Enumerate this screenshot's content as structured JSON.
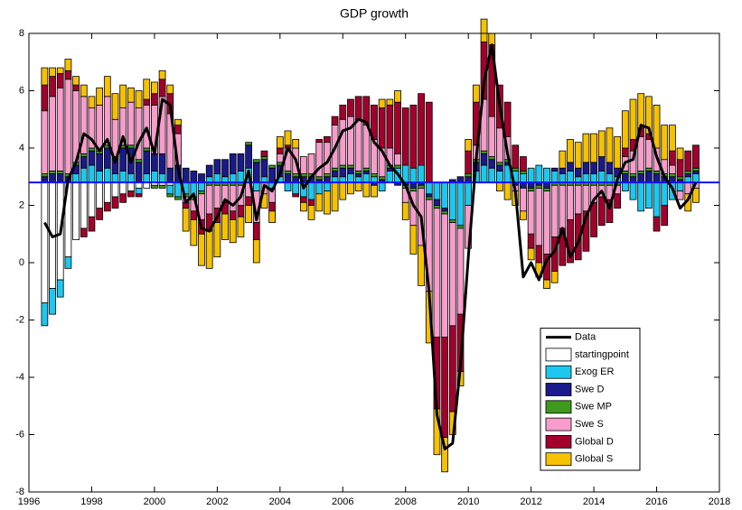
{
  "chart_data": {
    "type": "bar",
    "title": "GDP growth",
    "xlim": [
      1996,
      2018
    ],
    "xticks": [
      1996,
      1998,
      2000,
      2002,
      2004,
      2006,
      2008,
      2010,
      2012,
      2014,
      2016,
      2018
    ],
    "ylim": [
      -8,
      8
    ],
    "yticks": [
      -8,
      -6,
      -4,
      -2,
      0,
      2,
      4,
      6,
      8
    ],
    "baseline": 2.8,
    "baseline_color": "#1010ff",
    "legend": "lower right",
    "x": [
      1996.5,
      1996.75,
      1997,
      1997.25,
      1997.5,
      1997.75,
      1998,
      1998.25,
      1998.5,
      1998.75,
      1999,
      1999.25,
      1999.5,
      1999.75,
      2000,
      2000.25,
      2000.5,
      2000.75,
      2001,
      2001.25,
      2001.5,
      2001.75,
      2002,
      2002.25,
      2002.5,
      2002.75,
      2003,
      2003.25,
      2003.5,
      2003.75,
      2004,
      2004.25,
      2004.5,
      2004.75,
      2005,
      2005.25,
      2005.5,
      2005.75,
      2006,
      2006.25,
      2006.5,
      2006.75,
      2007,
      2007.25,
      2007.5,
      2007.75,
      2008,
      2008.25,
      2008.5,
      2008.75,
      2009,
      2009.25,
      2009.5,
      2009.75,
      2010,
      2010.25,
      2010.5,
      2010.75,
      2011,
      2011.25,
      2011.5,
      2011.75,
      2012,
      2012.25,
      2012.5,
      2012.75,
      2013,
      2013.25,
      2013.5,
      2013.75,
      2014,
      2014.25,
      2014.5,
      2014.75,
      2015,
      2015.25,
      2015.5,
      2015.75,
      2016,
      2016.25,
      2016.5,
      2016.75,
      2017,
      2017.25
    ],
    "data": {
      "name": "Data",
      "color": "#000000",
      "values": [
        1.4,
        0.9,
        1.0,
        2.9,
        3.5,
        4.5,
        4.3,
        3.9,
        4.3,
        3.5,
        4.4,
        3.5,
        4.2,
        4.7,
        3.8,
        5.7,
        5.5,
        3.3,
        2.1,
        2.4,
        1.2,
        1.1,
        1.6,
        2.2,
        2.0,
        2.3,
        3.2,
        1.5,
        2.7,
        2.5,
        3.1,
        4.0,
        3.6,
        2.6,
        3.0,
        3.3,
        3.5,
        4.0,
        4.6,
        4.7,
        5.0,
        4.9,
        4.2,
        3.9,
        3.4,
        3.1,
        2.7,
        2.0,
        1.6,
        -1.0,
        -5.3,
        -6.5,
        -6.3,
        -3.6,
        0.2,
        3.6,
        6.3,
        7.6,
        5.5,
        3.8,
        2.5,
        -0.5,
        0.0,
        -0.6,
        0.1,
        0.4,
        1.2,
        0.2,
        0.7,
        1.6,
        2.2,
        2.5,
        1.9,
        2.9,
        3.5,
        3.6,
        4.8,
        4.7,
        3.7,
        3.0,
        2.6,
        1.9,
        2.2,
        2.8
      ]
    },
    "series": [
      {
        "name": "startingpoint",
        "color": "#ffffff",
        "values": [
          -4.2,
          -3.7,
          -3.4,
          -2.6,
          -2.0,
          -1.6,
          -1.2,
          -0.9,
          -0.7,
          -0.5,
          -0.4,
          -0.3,
          -0.2,
          -0.2,
          -0.1,
          -0.1,
          -0.1,
          0,
          0,
          0,
          0,
          0,
          0,
          0,
          0,
          0,
          0,
          0,
          0,
          0,
          0,
          0,
          0,
          0,
          0,
          0,
          0,
          0,
          0,
          0,
          0,
          0,
          0,
          0,
          0,
          0,
          0,
          0,
          0,
          0,
          0,
          0,
          0,
          0,
          0,
          0,
          0,
          0,
          0,
          0,
          0,
          0,
          0,
          0,
          0,
          0,
          0,
          0,
          0,
          0,
          0,
          0,
          0,
          0,
          0,
          0,
          0,
          0,
          0,
          0,
          0,
          0,
          0,
          0
        ]
      },
      {
        "name": "Exog ER",
        "color": "#1cc8f0",
        "values": [
          -0.8,
          -0.9,
          -0.6,
          -0.4,
          0.3,
          0.5,
          0.6,
          0.4,
          0.5,
          0.3,
          0.4,
          0.3,
          -0.2,
          0.3,
          0.4,
          0.3,
          -0.3,
          -0.5,
          -0.4,
          -0.5,
          -0.3,
          0.2,
          0.3,
          0.2,
          0.3,
          0.4,
          0.5,
          -0.3,
          0.2,
          -0.2,
          0.2,
          -0.3,
          -0.4,
          -0.5,
          -0.6,
          -0.4,
          -0.3,
          0.2,
          0.2,
          0.3,
          0.2,
          0.3,
          0.2,
          -0.3,
          0.4,
          0.5,
          0.6,
          0.5,
          0.6,
          -0.4,
          -0.6,
          -0.9,
          -1.3,
          -1.5,
          -0.8,
          0.4,
          0.6,
          0.5,
          0.4,
          0.6,
          0.4,
          0.3,
          0.5,
          0.6,
          0.5,
          0.4,
          0.3,
          0.4,
          0.2,
          0.3,
          0.3,
          0.4,
          0.3,
          0.2,
          -0.3,
          -0.6,
          -1.0,
          -0.9,
          -1.2,
          -0.8,
          -0.6,
          -0.3,
          0.2,
          0.3
        ]
      },
      {
        "name": "Swe D",
        "color": "#1a1a8c",
        "values": [
          0.2,
          0.3,
          0.3,
          0.2,
          0.3,
          0.4,
          0.5,
          0.6,
          0.7,
          0.5,
          0.8,
          0.9,
          0.7,
          0.8,
          0.6,
          0.7,
          0.5,
          0.6,
          0.5,
          0.4,
          0.3,
          0.4,
          0.5,
          0.6,
          0.7,
          0.6,
          0.8,
          0.7,
          0.6,
          0.5,
          0.4,
          0.3,
          0.2,
          0.2,
          0.2,
          0.1,
          0.2,
          0.2,
          0.3,
          0.2,
          0.1,
          0.1,
          -0.1,
          0.1,
          0.1,
          -0.1,
          -0.1,
          -0.2,
          -0.1,
          -0.1,
          -0.2,
          -0.1,
          0.1,
          0.2,
          0.2,
          0.3,
          0.4,
          0.3,
          0.2,
          0.1,
          -0.1,
          -0.2,
          -0.2,
          -0.1,
          -0.2,
          0.1,
          0.2,
          0.3,
          0.3,
          0.4,
          0.4,
          0.5,
          0.4,
          0.3,
          0.3,
          0.2,
          0.3,
          0.4,
          0.3,
          0.2,
          0.2,
          0.1,
          0.1,
          0.1
        ]
      },
      {
        "name": "Swe MP",
        "color": "#3d9a1c",
        "values": [
          0.1,
          0.1,
          0.1,
          0.1,
          0.1,
          0.1,
          0.1,
          0.1,
          0.1,
          0.1,
          0.1,
          0.1,
          0.1,
          0.1,
          -0.1,
          -0.1,
          -0.1,
          -0.1,
          -0.1,
          -0.1,
          -0.1,
          -0.1,
          -0.1,
          -0.1,
          -0.1,
          -0.1,
          0.1,
          0.1,
          0.1,
          0.1,
          0.1,
          0.1,
          0.1,
          0.1,
          0.1,
          0.1,
          0.1,
          0.1,
          0.1,
          0.1,
          0.1,
          0.1,
          0.1,
          0.1,
          0.1,
          0.1,
          -0.1,
          -0.1,
          -0.1,
          -0.1,
          -0.1,
          -0.1,
          -0.1,
          -0.1,
          0.1,
          0.1,
          0.1,
          0.1,
          0.1,
          0.1,
          0.1,
          0.1,
          -0.1,
          -0.1,
          -0.1,
          -0.1,
          -0.1,
          -0.1,
          -0.1,
          -0.1,
          -0.1,
          -0.1,
          -0.1,
          -0.1,
          0.1,
          0.1,
          0.1,
          0.1,
          0.1,
          0.1,
          0.1,
          0.1,
          0.1,
          0.1
        ]
      },
      {
        "name": "Swe S",
        "color": "#f79ccb",
        "values": [
          2.2,
          2.6,
          2.9,
          3.3,
          2.5,
          2.0,
          1.4,
          1.6,
          1.7,
          1.3,
          1.3,
          1.5,
          1.8,
          1.5,
          1.7,
          2.0,
          1.9,
          1.1,
          -0.2,
          -0.4,
          -0.9,
          -1.0,
          -0.8,
          -0.6,
          -0.9,
          -0.7,
          -0.5,
          -1.1,
          -0.4,
          -0.5,
          0.3,
          0.8,
          0.9,
          0.6,
          0.7,
          1.2,
          1.1,
          1.5,
          1.6,
          1.7,
          1.8,
          1.5,
          1.2,
          1.0,
          0.6,
          0.4,
          -0.5,
          -1.2,
          -2.0,
          -3.2,
          -4.5,
          -4.3,
          -3.6,
          -3.0,
          -1.5,
          0.5,
          1.8,
          1.4,
          1.2,
          0.8,
          -0.2,
          -0.8,
          -1.5,
          -2.0,
          -2.2,
          -1.8,
          -1.5,
          -1.2,
          -1.0,
          -0.9,
          -0.6,
          -0.4,
          -0.5,
          -0.3,
          0.5,
          0.8,
          1.2,
          1.0,
          0.8,
          0.5,
          0.3,
          -0.3,
          -0.4,
          -0.2
        ]
      },
      {
        "name": "Global D",
        "color": "#a3002c",
        "values": [
          0.9,
          0.7,
          0.5,
          0.3,
          0.2,
          -0.3,
          -0.5,
          -0.4,
          -0.3,
          -0.4,
          -0.3,
          -0.2,
          -0.1,
          0.2,
          0.4,
          0.6,
          0.7,
          0.3,
          -0.2,
          -0.3,
          -0.5,
          -0.6,
          -0.5,
          -0.4,
          -0.3,
          -0.4,
          -0.3,
          -0.6,
          0.2,
          -0.3,
          0.2,
          0.1,
          -0.1,
          -0.2,
          -0.2,
          0.1,
          0.2,
          0.3,
          0.5,
          0.6,
          0.8,
          1.0,
          1.2,
          1.4,
          1.5,
          1.8,
          2.0,
          2.2,
          2.5,
          2.8,
          -2.5,
          -3.5,
          -3.0,
          -2.0,
          0.8,
          1.5,
          2.0,
          2.5,
          1.5,
          1.2,
          0.8,
          0.5,
          -0.5,
          -0.6,
          -0.9,
          -1.2,
          -1.3,
          -1.5,
          -1.6,
          -1.4,
          -1.2,
          -1.0,
          -0.8,
          -0.5,
          0.3,
          0.4,
          0.3,
          0.2,
          -0.5,
          -0.7,
          0.5,
          0.6,
          0.7,
          0.8
        ]
      },
      {
        "name": "Global S",
        "color": "#f6c100",
        "values": [
          0.6,
          0.3,
          0.2,
          0.4,
          0.3,
          0.4,
          0.4,
          0.6,
          0.7,
          0.9,
          0.8,
          0.5,
          0.6,
          0.7,
          0.4,
          0.3,
          0.3,
          0.2,
          -0.8,
          -0.9,
          -1.1,
          -1.3,
          -1.2,
          -0.9,
          -0.8,
          -0.7,
          -0.6,
          -0.8,
          -0.5,
          -0.4,
          0.4,
          0.5,
          0.3,
          -0.3,
          -0.5,
          -0.6,
          -0.8,
          -1.0,
          -0.6,
          -0.4,
          -0.3,
          -0.5,
          -0.4,
          0.3,
          0.2,
          0.4,
          -0.6,
          -1.0,
          -1.4,
          -1.8,
          -1.6,
          -1.2,
          -0.8,
          -0.5,
          0.4,
          0.6,
          0.8,
          0.4,
          -0.3,
          -0.6,
          -0.5,
          -0.3,
          -0.4,
          -0.5,
          -0.3,
          -0.4,
          0.6,
          0.8,
          0.9,
          1.0,
          1.0,
          0.9,
          1.2,
          1.1,
          1.3,
          1.4,
          1.2,
          1.3,
          1.5,
          1.2,
          0.9,
          0.4,
          -0.6,
          -0.5
        ]
      }
    ]
  }
}
